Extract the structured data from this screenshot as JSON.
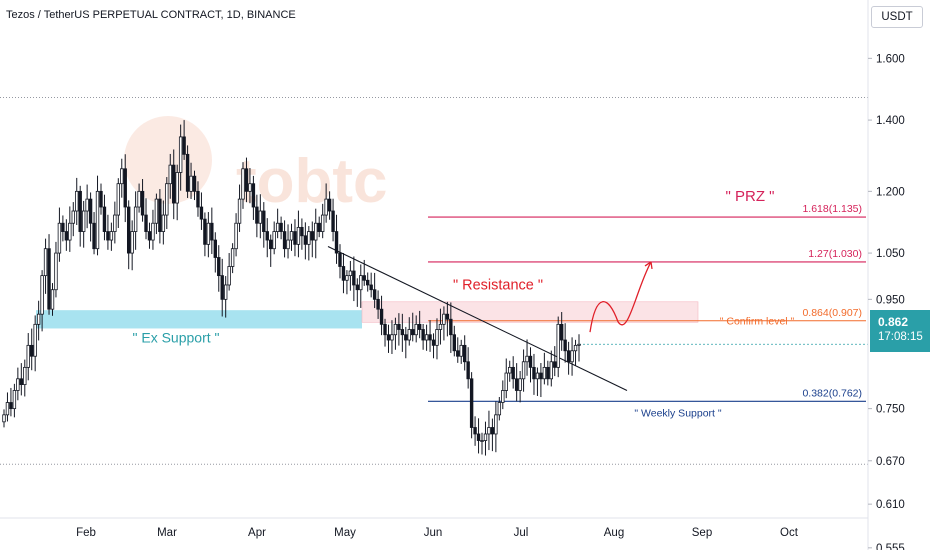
{
  "header": {
    "title": "Tezos / TetherUS PERPETUAL CONTRACT, 1D, BINANCE",
    "currency_button": "USDT"
  },
  "price_label": {
    "price": "0.862",
    "countdown": "17:08:15"
  },
  "colors": {
    "bull": "#26a69a",
    "bear": "#ef5350",
    "candle": "#131722",
    "support_zone": "#a8e3f0",
    "resistance_zone": "#fbe3e6",
    "fib_red": "#d5225a",
    "fib_orange": "#f26b2b",
    "fib_blue": "#1a3f8c",
    "teal_text": "#2a9fa8",
    "watermark": "#f7d9cc"
  },
  "watermark": "tobtc",
  "chart_data": {
    "type": "candlestick",
    "title": "Tezos / TetherUS PERPETUAL CONTRACT, 1D, BINANCE",
    "y_scale": "log",
    "ylim": [
      0.54,
      1.72
    ],
    "y_ticks": [
      "1.600",
      "1.400",
      "1.200",
      "1.050",
      "0.950",
      "0.750",
      "0.670",
      "0.610",
      "0.555"
    ],
    "x_ticks": [
      "Feb",
      "Mar",
      "Apr",
      "May",
      "Jun",
      "Jul",
      "Aug",
      "Sep",
      "Oct"
    ],
    "current_price": 0.862,
    "closes": [
      0.74,
      0.76,
      0.75,
      0.78,
      0.8,
      0.79,
      0.82,
      0.86,
      0.84,
      0.9,
      0.92,
      1.0,
      1.06,
      0.93,
      0.97,
      1.05,
      1.12,
      1.1,
      1.08,
      1.12,
      1.15,
      1.2,
      1.1,
      1.15,
      1.18,
      1.12,
      1.06,
      1.2,
      1.16,
      1.1,
      1.08,
      1.1,
      1.14,
      1.22,
      1.26,
      1.16,
      1.05,
      1.1,
      1.16,
      1.2,
      1.14,
      1.1,
      1.08,
      1.12,
      1.18,
      1.1,
      1.14,
      1.22,
      1.27,
      1.17,
      1.25,
      1.35,
      1.3,
      1.2,
      1.24,
      1.2,
      1.16,
      1.13,
      1.07,
      1.12,
      1.08,
      1.04,
      1.0,
      0.95,
      0.98,
      1.02,
      1.06,
      1.12,
      1.18,
      1.26,
      1.2,
      1.22,
      1.16,
      1.12,
      1.15,
      1.1,
      1.08,
      1.06,
      1.1,
      1.12,
      1.1,
      1.06,
      1.08,
      1.1,
      1.07,
      1.11,
      1.09,
      1.07,
      1.1,
      1.08,
      1.12,
      1.1,
      1.14,
      1.18,
      1.15,
      1.1,
      1.05,
      1.02,
      0.99,
      1.0,
      1.01,
      0.98,
      0.97,
      1.0,
      0.99,
      0.98,
      0.97,
      0.95,
      0.93,
      0.9,
      0.88,
      0.87,
      0.88,
      0.9,
      0.89,
      0.88,
      0.87,
      0.89,
      0.88,
      0.9,
      0.89,
      0.87,
      0.88,
      0.87,
      0.86,
      0.89,
      0.9,
      0.92,
      0.91,
      0.88,
      0.85,
      0.84,
      0.86,
      0.83,
      0.8,
      0.72,
      0.71,
      0.7,
      0.7,
      0.71,
      0.72,
      0.71,
      0.74,
      0.76,
      0.78,
      0.81,
      0.82,
      0.8,
      0.78,
      0.8,
      0.83,
      0.84,
      0.82,
      0.8,
      0.81,
      0.8,
      0.82,
      0.8,
      0.83,
      0.82,
      0.9,
      0.87,
      0.85,
      0.83,
      0.85,
      0.86,
      0.862
    ],
    "annotations": [
      {
        "text": "\" PRZ \"",
        "color": "#d5225a"
      },
      {
        "text": "\" Resistance \"",
        "color": "#e0202a"
      },
      {
        "text": "\" Ex Support \"",
        "color": "#2a9fa8"
      },
      {
        "text": "\" Confirm level \"",
        "color": "#f26b2b"
      },
      {
        "text": "\" Weekly Support \"",
        "color": "#1a3f8c"
      }
    ],
    "fib_levels": [
      {
        "label": "1.618(1.135)",
        "ratio": 1.618,
        "price": 1.135,
        "color": "#d5225a"
      },
      {
        "label": "1.27(1.030)",
        "ratio": 1.27,
        "price": 1.03,
        "color": "#d5225a"
      },
      {
        "label": "0.864(0.907)",
        "ratio": 0.864,
        "price": 0.907,
        "color": "#f26b2b"
      },
      {
        "label": "0.382(0.762)",
        "ratio": 0.382,
        "price": 0.762,
        "color": "#1a3f8c"
      }
    ],
    "zones": [
      {
        "name": "ex-support",
        "from": 0.892,
        "to": 0.928
      },
      {
        "name": "resistance",
        "from": 0.904,
        "to": 0.945
      }
    ],
    "dotted_levels": [
      1.47,
      0.665
    ]
  }
}
